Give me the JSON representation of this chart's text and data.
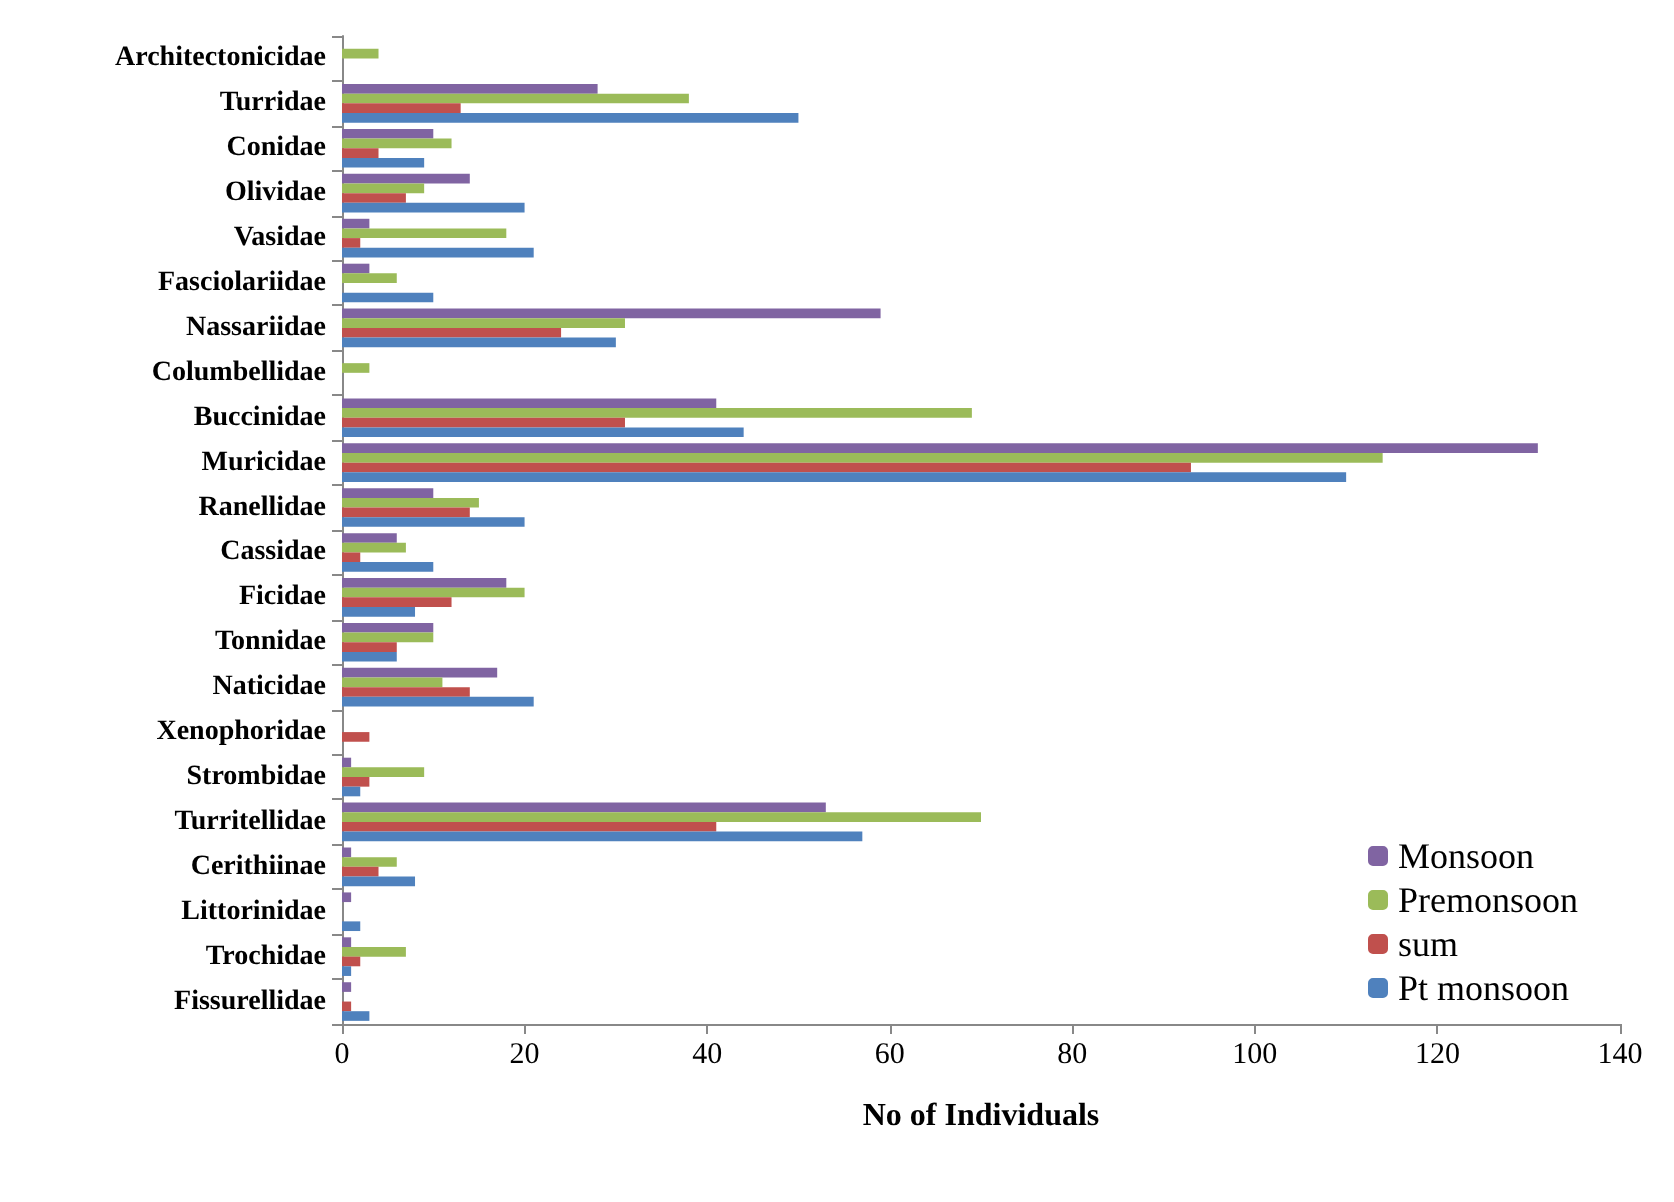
{
  "chart_data": {
    "type": "bar",
    "orientation": "horizontal",
    "xlabel": "No of Individuals",
    "categories": [
      "Architectonicidae",
      "Turridae",
      "Conidae",
      "Olividae",
      "Vasidae",
      "Fasciolariidae",
      "Nassariidae",
      "Columbellidae",
      "Buccinidae",
      "Muricidae",
      "Ranellidae",
      "Cassidae",
      "Ficidae",
      "Tonnidae",
      "Naticidae",
      "Xenophoridae",
      "Strombidae",
      "Turritellidae",
      "Cerithiinae",
      "Littorinidae",
      "Trochidae",
      "Fissurellidae"
    ],
    "series": [
      {
        "name": "Monsoon",
        "color": "#8064a2",
        "values": [
          0,
          28,
          10,
          14,
          3,
          3,
          59,
          0,
          41,
          131,
          10,
          6,
          18,
          10,
          17,
          0,
          1,
          53,
          1,
          1,
          1,
          1
        ]
      },
      {
        "name": "Premonsoon",
        "color": "#9bbb59",
        "values": [
          4,
          38,
          12,
          9,
          18,
          6,
          31,
          3,
          69,
          114,
          15,
          7,
          20,
          10,
          11,
          0,
          9,
          70,
          6,
          0,
          7,
          0
        ]
      },
      {
        "name": "sum",
        "color": "#c0504d",
        "values": [
          0,
          13,
          4,
          7,
          2,
          0,
          24,
          0,
          31,
          93,
          14,
          2,
          12,
          6,
          14,
          3,
          3,
          41,
          4,
          0,
          2,
          1
        ]
      },
      {
        "name": "Pt monsoon",
        "color": "#4f81bd",
        "values": [
          0,
          50,
          9,
          20,
          21,
          10,
          30,
          0,
          44,
          110,
          20,
          10,
          8,
          6,
          21,
          0,
          2,
          57,
          8,
          2,
          1,
          3
        ]
      }
    ],
    "xlim": [
      0,
      140
    ],
    "xticks": [
      0,
      20,
      40,
      60,
      80,
      100,
      120,
      140
    ],
    "grid": false,
    "legend": "bottom right"
  }
}
